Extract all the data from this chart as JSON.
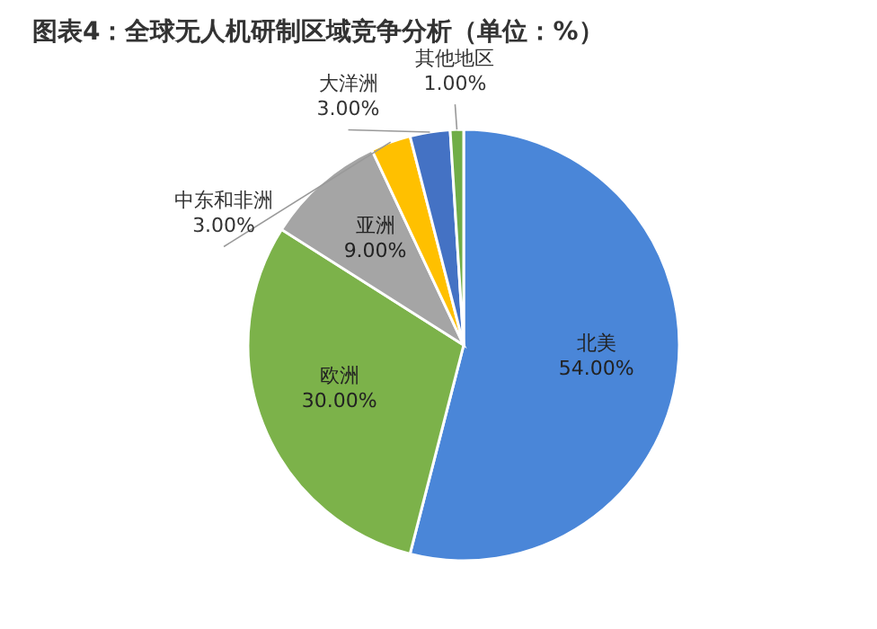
{
  "chart_data": {
    "type": "pie",
    "title": "图表4：全球无人机研制区域竞争分析（单位：%）",
    "categories": [
      "北美",
      "欧洲",
      "亚洲",
      "中东和非洲",
      "大洋洲",
      "其他地区"
    ],
    "values": [
      54,
      30,
      9,
      3,
      3,
      1
    ],
    "value_labels": [
      "54.00%",
      "30.00%",
      "9.00%",
      "3.00%",
      "3.00%",
      "1.00%"
    ],
    "colors": [
      "#4a86d8",
      "#7cb24a",
      "#a5a5a5",
      "#ffc000",
      "#4472c4",
      "#70ad47"
    ]
  }
}
